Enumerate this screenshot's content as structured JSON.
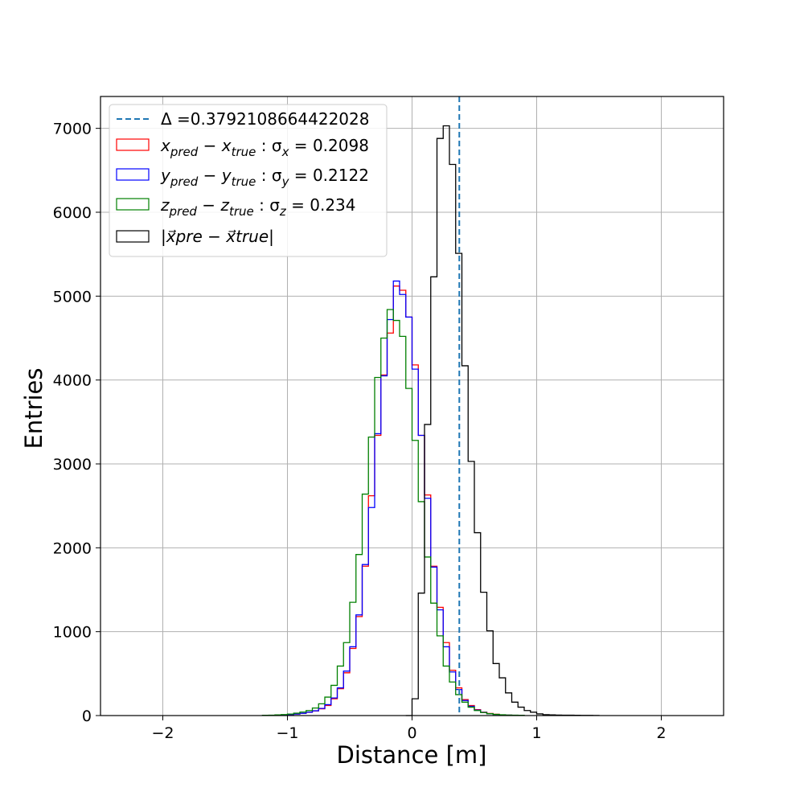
{
  "chart_data": {
    "type": "histogram",
    "xlabel": "Distance [m]",
    "ylabel": "Entries",
    "xlim": [
      -2.5,
      2.5
    ],
    "ylim": [
      0,
      7380
    ],
    "grid": true,
    "legend_position": "upper-left",
    "x_ticks": [
      -2,
      -1,
      0,
      1,
      2
    ],
    "x_tick_labels": [
      "−2",
      "−1",
      "0",
      "1",
      "2"
    ],
    "y_ticks": [
      0,
      1000,
      2000,
      3000,
      4000,
      5000,
      6000,
      7000
    ],
    "y_tick_labels": [
      "0",
      "1000",
      "2000",
      "3000",
      "4000",
      "5000",
      "6000",
      "7000"
    ],
    "vline": {
      "x": 0.3792108664422028,
      "color": "#1f77b4",
      "style": "dashed",
      "legend_prefix": "Δ =",
      "legend_value": "0.3792108664422028"
    },
    "series": [
      {
        "legend": {
          "a": "x",
          "a_sub": "pred",
          "b": "x",
          "b_sub": "true",
          "s": "x",
          "val": "0.2098"
        },
        "color": "#ff0000",
        "bin_start": -1.2,
        "bin_width": 0.05,
        "values": [
          2,
          3,
          5,
          8,
          12,
          18,
          26,
          38,
          55,
          80,
          120,
          200,
          320,
          510,
          800,
          1180,
          1780,
          2620,
          3340,
          4060,
          4560,
          5120,
          5070,
          4750,
          4180,
          3340,
          2630,
          1780,
          1290,
          870,
          540,
          330,
          190,
          120,
          70,
          40,
          25,
          15,
          8,
          5,
          3,
          2
        ]
      },
      {
        "legend": {
          "a": "y",
          "a_sub": "pred",
          "b": "y",
          "b_sub": "true",
          "s": "y",
          "val": "0.2122"
        },
        "color": "#0000ff",
        "bin_start": -1.2,
        "bin_width": 0.05,
        "values": [
          2,
          3,
          5,
          8,
          12,
          18,
          27,
          40,
          57,
          85,
          130,
          210,
          330,
          530,
          820,
          1200,
          1800,
          2480,
          3360,
          4050,
          4720,
          5180,
          5020,
          4750,
          4130,
          3340,
          2590,
          1770,
          1260,
          820,
          520,
          310,
          180,
          110,
          65,
          38,
          22,
          13,
          7,
          4,
          3,
          2
        ]
      },
      {
        "legend": {
          "a": "z",
          "a_sub": "pred",
          "b": "z",
          "b_sub": "true",
          "s": "z",
          "val": "0.234"
        },
        "color": "#008000",
        "bin_start": -1.2,
        "bin_width": 0.05,
        "values": [
          3,
          5,
          8,
          12,
          18,
          28,
          42,
          60,
          90,
          140,
          220,
          360,
          590,
          870,
          1350,
          1920,
          2640,
          3320,
          4030,
          4500,
          4840,
          4710,
          4520,
          3900,
          3280,
          2550,
          1890,
          1340,
          950,
          590,
          400,
          250,
          160,
          100,
          60,
          36,
          22,
          14,
          9,
          6,
          4,
          3
        ]
      },
      {
        "legend": {
          "text": "|x⃗pre − x⃗true|"
        },
        "color": "#000000",
        "bin_start": -0.05,
        "bin_width": 0.05,
        "values": [
          0,
          200,
          1460,
          3470,
          5230,
          6880,
          7030,
          6570,
          5510,
          4170,
          3030,
          2180,
          1470,
          1010,
          620,
          450,
          270,
          160,
          100,
          60,
          40,
          20,
          10,
          8,
          6,
          5,
          4,
          3,
          2,
          2,
          1
        ]
      }
    ]
  }
}
